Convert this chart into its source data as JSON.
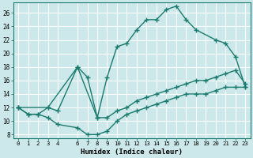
{
  "xlabel": "Humidex (Indice chaleur)",
  "bg_color": "#cce8ea",
  "grid_color": "#ffffff",
  "line_color": "#1a7a6e",
  "xlim": [
    -0.5,
    23.5
  ],
  "ylim": [
    7.5,
    27.5
  ],
  "xticks": [
    0,
    1,
    2,
    3,
    4,
    6,
    7,
    8,
    9,
    10,
    11,
    12,
    13,
    14,
    15,
    16,
    17,
    18,
    19,
    20,
    21,
    22,
    23
  ],
  "yticks": [
    8,
    10,
    12,
    14,
    16,
    18,
    20,
    22,
    24,
    26
  ],
  "line_high_x": [
    0,
    3,
    6,
    8,
    9,
    10,
    11,
    12,
    13,
    14,
    15,
    16,
    17,
    18,
    20,
    21,
    22,
    23
  ],
  "line_high_y": [
    12,
    12,
    18,
    10.5,
    16.5,
    21,
    21.5,
    23.5,
    25,
    25,
    26.5,
    27,
    25,
    23.5,
    22,
    21.5,
    19.5,
    15
  ],
  "line_mid_x": [
    0,
    1,
    2,
    3,
    4,
    6,
    7,
    8,
    9,
    10,
    11,
    12,
    13,
    14,
    15,
    16,
    17,
    18,
    19,
    20,
    21,
    22,
    23
  ],
  "line_mid_y": [
    12,
    11,
    11,
    12,
    11.5,
    18,
    16.5,
    10.5,
    10.5,
    11.5,
    12,
    13,
    13.5,
    14,
    14.5,
    15,
    15.5,
    16,
    16,
    16.5,
    17,
    17.5,
    15.5
  ],
  "line_low_x": [
    0,
    1,
    2,
    3,
    4,
    6,
    7,
    8,
    9,
    10,
    11,
    12,
    13,
    14,
    15,
    16,
    17,
    18,
    19,
    20,
    21,
    22,
    23
  ],
  "line_low_y": [
    12,
    11,
    11,
    10.5,
    9.5,
    9,
    8,
    8,
    8.5,
    10,
    11,
    11.5,
    12,
    12.5,
    13,
    13.5,
    14,
    14,
    14,
    14.5,
    15,
    15,
    15
  ],
  "marker": "+",
  "markersize": 4,
  "linewidth": 1.0,
  "tick_fontsize": 5.2,
  "xlabel_fontsize": 6.5
}
